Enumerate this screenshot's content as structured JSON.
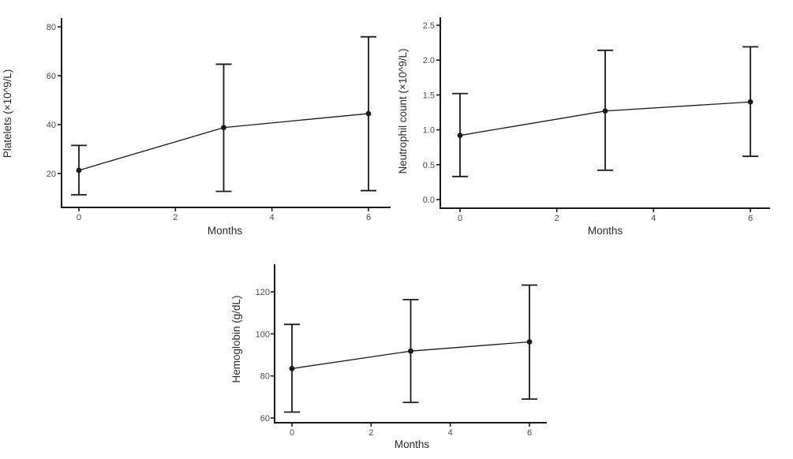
{
  "page": {
    "background": "#ffffff"
  },
  "colors": {
    "foreground": "#1a1a1a",
    "tick_label": "#4a4a4a",
    "axis_title": "#2b2b2b"
  },
  "chart_data": [
    {
      "type": "line",
      "name": "platelets",
      "title": "",
      "xlabel": "Months",
      "ylabel": "Platelets (×10^9/L)",
      "x": [
        0,
        3,
        6
      ],
      "series": [
        {
          "name": "mean",
          "values": [
            21.3,
            38.8,
            44.5
          ]
        }
      ],
      "error_bars": {
        "lower": [
          11.3,
          12.7,
          13.0
        ],
        "upper": [
          31.5,
          64.7,
          75.9
        ]
      },
      "x_ticks": {
        "values": [
          0,
          2,
          4,
          6
        ],
        "labels": [
          "0",
          "2",
          "4",
          "6"
        ]
      },
      "y_ticks": {
        "values": [
          20,
          40,
          60,
          80
        ],
        "labels": [
          "20",
          "40",
          "60",
          "80"
        ]
      },
      "xlim": [
        -0.36,
        6.46
      ],
      "ylim": [
        6.1,
        83.5
      ],
      "grid": false,
      "legend": "none"
    },
    {
      "type": "line",
      "name": "neutrophil-count",
      "title": "",
      "xlabel": "Months",
      "ylabel": "Neutrophil count (×10^9/L)",
      "x": [
        0,
        3,
        6
      ],
      "series": [
        {
          "name": "mean",
          "values": [
            0.92,
            1.27,
            1.4
          ]
        }
      ],
      "error_bars": {
        "lower": [
          0.33,
          0.42,
          0.62
        ],
        "upper": [
          1.52,
          2.14,
          2.19
        ]
      },
      "x_ticks": {
        "values": [
          0,
          2,
          4,
          6
        ],
        "labels": [
          "0",
          "2",
          "4",
          "6"
        ]
      },
      "y_ticks": {
        "values": [
          0.0,
          0.5,
          1.0,
          1.5,
          2.0,
          2.5
        ],
        "labels": [
          "0.0",
          "0.5",
          "1.0",
          "1.5",
          "2.0",
          "2.5"
        ]
      },
      "xlim": [
        -0.41,
        6.41
      ],
      "ylim": [
        -0.12,
        2.61
      ],
      "grid": false,
      "legend": "none"
    },
    {
      "type": "line",
      "name": "hemoglobin",
      "title": "",
      "xlabel": "Months",
      "ylabel": "Hemoglobin (g/dL)",
      "x": [
        0,
        3,
        6
      ],
      "series": [
        {
          "name": "mean",
          "values": [
            83.5,
            91.8,
            96.2
          ]
        }
      ],
      "error_bars": {
        "lower": [
          62.8,
          67.4,
          69.0
        ],
        "upper": [
          104.5,
          116.3,
          123.2
        ]
      },
      "x_ticks": {
        "values": [
          0,
          2,
          4,
          6
        ],
        "labels": [
          "0",
          "2",
          "4",
          "6"
        ]
      },
      "y_ticks": {
        "values": [
          60,
          80,
          100,
          120
        ],
        "labels": [
          "60",
          "80",
          "100",
          "120"
        ]
      },
      "xlim": [
        -0.44,
        6.44
      ],
      "ylim": [
        57.7,
        132.8
      ],
      "grid": false,
      "legend": "none"
    }
  ]
}
